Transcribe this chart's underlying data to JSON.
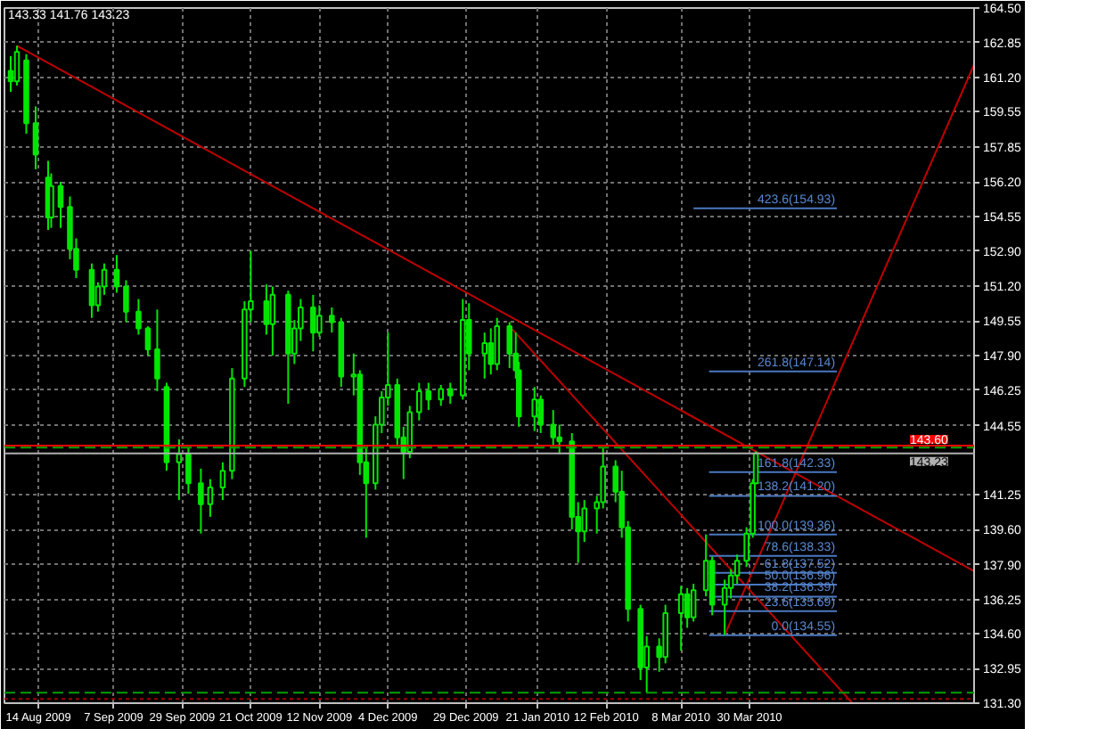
{
  "chart_data": {
    "type": "candlestick",
    "color": "#00e600",
    "x": [
      "2009-08-05",
      "2009-08-07",
      "2009-08-10",
      "2009-08-13",
      "2009-08-17",
      "2009-08-18",
      "2009-08-21",
      "2009-08-24",
      "2009-08-26",
      "2009-08-31",
      "2009-09-02",
      "2009-09-04",
      "2009-09-08",
      "2009-09-11",
      "2009-09-15",
      "2009-09-18",
      "2009-09-21",
      "2009-09-24",
      "2009-09-28",
      "2009-10-01",
      "2009-10-05",
      "2009-10-08",
      "2009-10-12",
      "2009-10-15",
      "2009-10-19",
      "2009-10-21",
      "2009-10-26",
      "2009-10-28",
      "2009-11-02",
      "2009-11-04",
      "2009-11-06",
      "2009-11-10",
      "2009-11-12",
      "2009-11-16",
      "2009-11-19",
      "2009-11-23",
      "2009-11-25",
      "2009-11-27",
      "2009-11-30",
      "2009-12-02",
      "2009-12-04",
      "2009-12-07",
      "2009-12-09",
      "2009-12-11",
      "2009-12-14",
      "2009-12-17",
      "2009-12-21",
      "2009-12-24",
      "2009-12-28",
      "2009-12-30",
      "2010-01-04",
      "2010-01-06",
      "2010-01-08",
      "2010-01-12",
      "2010-01-14",
      "2010-01-15",
      "2010-01-20",
      "2010-01-22",
      "2010-01-26",
      "2010-01-28",
      "2010-02-01",
      "2010-02-03",
      "2010-02-05",
      "2010-02-09",
      "2010-02-11",
      "2010-02-15",
      "2010-02-17",
      "2010-02-19",
      "2010-02-23",
      "2010-02-25",
      "2010-03-01",
      "2010-03-03",
      "2010-03-08",
      "2010-03-10",
      "2010-03-12",
      "2010-03-16",
      "2010-03-18",
      "2010-03-22",
      "2010-03-24",
      "2010-03-26",
      "2010-03-29",
      "2010-03-31",
      "2010-04-01"
    ],
    "ohlc": [
      [
        161.5,
        162.2,
        160.5,
        161.0
      ],
      [
        161.0,
        162.7,
        160.8,
        162.4
      ],
      [
        162.0,
        162.3,
        158.5,
        159.0
      ],
      [
        159.0,
        159.8,
        156.8,
        157.5
      ],
      [
        156.4,
        157.2,
        153.9,
        154.5
      ],
      [
        154.5,
        156.6,
        154.0,
        156.0
      ],
      [
        156.0,
        156.2,
        154.0,
        155.0
      ],
      [
        155.0,
        155.5,
        152.5,
        153.0
      ],
      [
        153.0,
        153.5,
        151.6,
        152.0
      ],
      [
        152.0,
        152.3,
        149.7,
        150.3
      ],
      [
        150.3,
        151.4,
        150.0,
        151.2
      ],
      [
        151.2,
        152.3,
        150.8,
        152.0
      ],
      [
        152.0,
        152.7,
        150.9,
        151.2
      ],
      [
        151.2,
        151.5,
        149.5,
        150.0
      ],
      [
        150.0,
        150.6,
        148.9,
        149.2
      ],
      [
        149.2,
        149.3,
        147.9,
        148.2
      ],
      [
        148.2,
        150.1,
        146.2,
        146.8
      ],
      [
        146.4,
        146.6,
        142.4,
        142.8
      ],
      [
        142.8,
        143.9,
        141.0,
        143.2
      ],
      [
        143.2,
        143.5,
        141.3,
        141.8
      ],
      [
        141.8,
        142.5,
        139.4,
        140.8
      ],
      [
        140.8,
        142.0,
        140.2,
        141.6
      ],
      [
        141.6,
        142.8,
        141.0,
        142.4
      ],
      [
        142.4,
        147.3,
        142.0,
        146.8
      ],
      [
        146.8,
        150.5,
        146.4,
        150.1
      ],
      [
        150.1,
        152.9,
        149.5,
        150.5
      ],
      [
        150.5,
        151.3,
        148.9,
        149.4
      ],
      [
        149.4,
        151.2,
        147.9,
        150.8
      ],
      [
        150.8,
        151.0,
        145.6,
        148.0
      ],
      [
        148.0,
        149.6,
        147.5,
        149.2
      ],
      [
        149.2,
        150.6,
        148.6,
        150.2
      ],
      [
        150.2,
        150.8,
        148.1,
        149.0
      ],
      [
        149.0,
        150.3,
        148.8,
        149.8
      ],
      [
        149.8,
        150.2,
        149.0,
        149.5
      ],
      [
        149.5,
        149.7,
        146.4,
        146.9
      ],
      [
        146.9,
        148.0,
        146.0,
        147.0
      ],
      [
        147.0,
        147.2,
        142.2,
        142.8
      ],
      [
        142.8,
        143.5,
        139.2,
        141.8
      ],
      [
        141.8,
        145.0,
        141.5,
        144.6
      ],
      [
        144.6,
        146.2,
        144.2,
        145.9
      ],
      [
        145.9,
        149.0,
        145.5,
        146.5
      ],
      [
        146.5,
        146.8,
        143.6,
        144.0
      ],
      [
        144.0,
        144.5,
        142.0,
        143.3
      ],
      [
        143.3,
        145.5,
        143.0,
        145.2
      ],
      [
        145.2,
        146.6,
        144.8,
        146.2
      ],
      [
        146.2,
        146.6,
        145.3,
        145.8
      ],
      [
        145.8,
        146.5,
        145.5,
        146.3
      ],
      [
        146.3,
        146.6,
        145.6,
        146.0
      ],
      [
        146.0,
        150.6,
        145.8,
        149.6
      ],
      [
        149.6,
        150.4,
        147.2,
        148.0
      ],
      [
        148.0,
        149.0,
        146.8,
        148.5
      ],
      [
        148.5,
        149.2,
        147.0,
        147.5
      ],
      [
        147.5,
        149.7,
        147.2,
        149.3
      ],
      [
        149.3,
        149.5,
        147.3,
        148.0
      ],
      [
        148.0,
        149.0,
        146.8,
        147.2
      ],
      [
        147.2,
        147.6,
        144.5,
        145.0
      ],
      [
        145.0,
        146.4,
        144.3,
        145.8
      ],
      [
        145.8,
        146.0,
        144.2,
        144.6
      ],
      [
        144.6,
        145.3,
        143.6,
        144.0
      ],
      [
        144.0,
        144.6,
        143.2,
        143.8
      ],
      [
        143.8,
        144.2,
        139.6,
        140.2
      ],
      [
        140.2,
        140.9,
        138.0,
        139.5
      ],
      [
        139.5,
        141.0,
        139.0,
        140.6
      ],
      [
        140.6,
        141.2,
        139.4,
        140.9
      ],
      [
        140.9,
        143.5,
        140.6,
        142.6
      ],
      [
        142.6,
        142.9,
        140.9,
        141.4
      ],
      [
        141.4,
        142.4,
        139.2,
        139.7
      ],
      [
        139.7,
        140.0,
        135.2,
        135.8
      ],
      [
        135.8,
        136.0,
        132.4,
        133.0
      ],
      [
        133.0,
        134.5,
        131.8,
        134.0
      ],
      [
        134.0,
        134.4,
        132.8,
        133.5
      ],
      [
        133.5,
        136.0,
        133.2,
        135.6
      ],
      [
        135.6,
        136.9,
        133.8,
        136.5
      ],
      [
        136.5,
        136.8,
        134.9,
        135.4
      ],
      [
        135.4,
        137.0,
        135.2,
        136.7
      ],
      [
        136.7,
        139.36,
        136.4,
        138.1
      ],
      [
        138.1,
        138.3,
        135.5,
        136.0
      ],
      [
        136.0,
        137.2,
        134.55,
        136.8
      ],
      [
        136.8,
        137.7,
        136.3,
        137.4
      ],
      [
        137.4,
        138.4,
        137.0,
        138.1
      ],
      [
        138.1,
        139.7,
        137.8,
        139.4
      ],
      [
        139.4,
        142.0,
        139.2,
        141.8
      ],
      [
        141.8,
        143.33,
        141.76,
        143.23
      ]
    ],
    "series": [
      {
        "type": "line",
        "color": "#c00000",
        "x": [
          "2009-08-07",
          "2010-06-10"
        ],
        "values": [
          162.7,
          137.6
        ]
      },
      {
        "type": "line",
        "color": "#c00000",
        "x": [
          "2010-01-12",
          "2010-05-02"
        ],
        "values": [
          149.3,
          131.3
        ]
      },
      {
        "type": "line",
        "color": "#c00000",
        "x": [
          "2010-03-22",
          "2010-06-10"
        ],
        "values": [
          134.55,
          161.8
        ]
      },
      {
        "type": "line",
        "color": "#4a78c0",
        "x": [
          "2010-03-12",
          "2010-04-27"
        ],
        "values": [
          154.93,
          154.93
        ]
      },
      {
        "type": "line",
        "color": "#4a78c0",
        "x": [
          "2010-03-17",
          "2010-04-27"
        ],
        "values": [
          147.14,
          147.14
        ]
      },
      {
        "type": "line",
        "color": "#4a78c0",
        "x": [
          "2010-03-17",
          "2010-04-27"
        ],
        "values": [
          142.33,
          142.33
        ]
      },
      {
        "type": "line",
        "color": "#4a78c0",
        "x": [
          "2010-03-17",
          "2010-04-27"
        ],
        "values": [
          141.2,
          141.2
        ]
      },
      {
        "type": "line",
        "color": "#4a78c0",
        "x": [
          "2010-03-17",
          "2010-04-27"
        ],
        "values": [
          139.36,
          139.36
        ]
      },
      {
        "type": "line",
        "color": "#4a78c0",
        "x": [
          "2010-03-17",
          "2010-04-27"
        ],
        "values": [
          138.33,
          138.33
        ]
      },
      {
        "type": "line",
        "color": "#4a78c0",
        "x": [
          "2010-03-17",
          "2010-04-27"
        ],
        "values": [
          137.52,
          137.52
        ]
      },
      {
        "type": "line",
        "color": "#4a78c0",
        "x": [
          "2010-03-17",
          "2010-04-27"
        ],
        "values": [
          136.96,
          136.96
        ]
      },
      {
        "type": "line",
        "color": "#4a78c0",
        "x": [
          "2010-03-17",
          "2010-04-27"
        ],
        "values": [
          136.39,
          136.39
        ]
      },
      {
        "type": "line",
        "color": "#4a78c0",
        "x": [
          "2010-03-17",
          "2010-04-27"
        ],
        "values": [
          135.69,
          135.69
        ]
      },
      {
        "type": "line",
        "color": "#4a78c0",
        "x": [
          "2010-03-17",
          "2010-04-27"
        ],
        "values": [
          134.55,
          134.55
        ]
      }
    ],
    "xlim": [
      "2009-08-03",
      "2010-06-10"
    ],
    "xticks": [
      {
        "value": "2009-08-14",
        "label": "14 Aug 2009"
      },
      {
        "value": "2009-09-07",
        "label": "7 Sep 2009"
      },
      {
        "value": "2009-09-29",
        "label": "29 Sep 2009"
      },
      {
        "value": "2009-10-21",
        "label": "21 Oct 2009"
      },
      {
        "value": "2009-11-12",
        "label": "12 Nov 2009"
      },
      {
        "value": "2009-12-04",
        "label": "4 Dec 2009"
      },
      {
        "value": "2009-12-29",
        "label": "29 Dec 2009"
      },
      {
        "value": "2010-01-21",
        "label": "21 Jan 2010"
      },
      {
        "value": "2010-02-12",
        "label": "12 Feb 2010"
      },
      {
        "value": "2010-03-08",
        "label": "8 Mar 2010"
      },
      {
        "value": "2010-03-30",
        "label": "30 Mar 2010"
      }
    ],
    "ylim": [
      131.3,
      164.5
    ],
    "yticks": [
      {
        "value": 164.5,
        "label": "164.50"
      },
      162.85,
      {
        "value": 161.2,
        "label": "161.20"
      },
      159.55,
      157.85,
      {
        "value": 156.2,
        "label": "156.20"
      },
      154.55,
      {
        "value": 152.9,
        "label": "152.90"
      },
      {
        "value": 151.2,
        "label": "151.20"
      },
      149.55,
      {
        "value": 147.9,
        "label": "147.90"
      },
      146.25,
      144.55,
      141.25,
      {
        "value": 139.6,
        "label": "139.60"
      },
      {
        "value": 137.9,
        "label": "137.90"
      },
      136.25,
      {
        "value": 134.6,
        "label": "134.60"
      },
      132.95,
      {
        "value": 131.3,
        "label": "131.30"
      }
    ],
    "grid": true,
    "ref_lines": [
      {
        "axis": "y",
        "value": 143.6,
        "label": "143.60",
        "color": "#ff0000"
      },
      {
        "axis": "y",
        "value": 143.5,
        "color": "#00a000",
        "line_style": "dashed"
      },
      {
        "axis": "y",
        "value": 143.23,
        "label": "143.23",
        "color": "#b0b0b0"
      },
      {
        "axis": "y",
        "value": 131.8,
        "color": "#00a000",
        "line_style": "dashed"
      },
      {
        "axis": "y",
        "value": 131.5,
        "color": "#a00000",
        "line_style": "dotted"
      }
    ],
    "annotations": [
      "143.33 141.76 143.23",
      {
        "text": "423.6(154.93)",
        "x": "2010-04-27",
        "y": 154.93
      },
      {
        "text": "261.8(147.14)",
        "x": "2010-04-27",
        "y": 147.14
      },
      {
        "text": "161.8(142.33)",
        "x": "2010-04-27",
        "y": 142.33
      },
      {
        "text": "138.2(141.20)",
        "x": "2010-04-27",
        "y": 141.2
      },
      {
        "text": "100.0(139.36)",
        "x": "2010-04-27",
        "y": 139.36
      },
      {
        "text": "78.6(138.33)",
        "x": "2010-04-27",
        "y": 138.33
      },
      {
        "text": "61.8(137.52)",
        "x": "2010-04-27",
        "y": 137.52
      },
      {
        "text": "50.0(136.96)",
        "x": "2010-04-27",
        "y": 136.96
      },
      {
        "text": "38.2(136.39)",
        "x": "2010-04-27",
        "y": 136.39
      },
      {
        "text": "23.6(135.69)",
        "x": "2010-04-27",
        "y": 135.69
      },
      {
        "text": "0.0(134.55)",
        "x": "2010-04-27",
        "y": 134.55
      }
    ]
  }
}
